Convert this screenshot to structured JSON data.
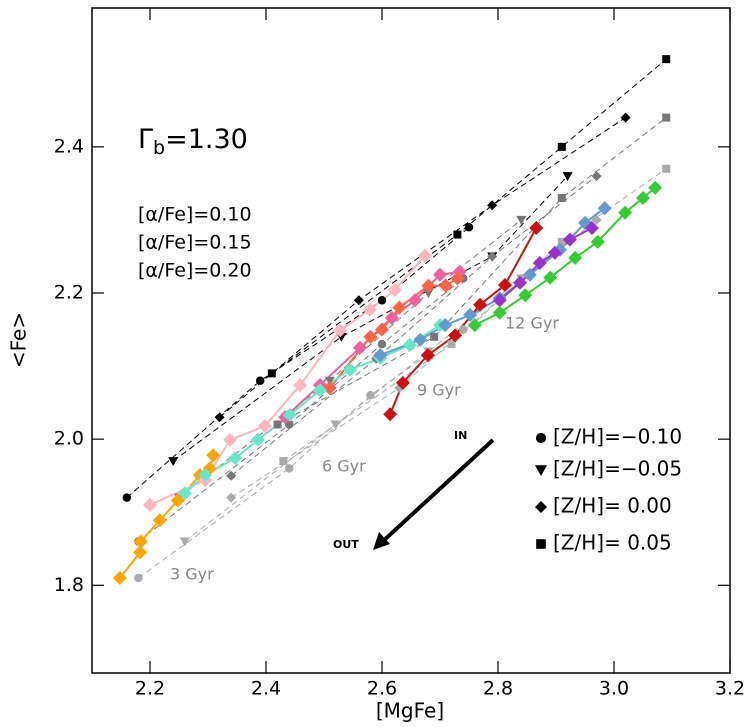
{
  "chart_data": {
    "type": "line",
    "x_label": "[MgFe]",
    "y_label": "<Fe>",
    "xlim": [
      2.1,
      3.2
    ],
    "ylim": [
      1.68,
      2.59
    ],
    "xticks": [
      2.2,
      2.4,
      2.6,
      2.8,
      {
        "value": 3,
        "label": "3.0"
      },
      3.2
    ],
    "yticks": [
      1.8,
      {
        "value": 2,
        "label": "2.0"
      },
      2.2,
      2.4
    ],
    "gamma_label": {
      "symbol": "Γ",
      "subscript": "b",
      "text": "=1.30"
    },
    "alpha_labels": [
      {
        "text": "[α/Fe]=0.10",
        "color": "#000000"
      },
      {
        "text": "[α/Fe]=0.15",
        "color": "#777777"
      },
      {
        "text": "[α/Fe]=0.20",
        "color": "#aaaaaa"
      }
    ],
    "age_labels": [
      "3 Gyr",
      "6 Gyr",
      "9 Gyr",
      "12 Gyr"
    ],
    "arrow_labels": [
      "IN",
      "OUT"
    ],
    "legend": [
      {
        "label": "[Z/H]=−0.10",
        "marker": "circle"
      },
      {
        "label": "[Z/H]=−0.05",
        "marker": "triangle"
      },
      {
        "label": "[Z/H]= 0.00",
        "marker": "diamond"
      },
      {
        "label": "[Z/H]= 0.05",
        "marker": "square"
      }
    ],
    "series": [
      {
        "color": "#000000",
        "marker": "circle",
        "style": "dashed",
        "x": [
          2.16,
          2.39,
          2.6,
          2.75
        ],
        "values": [
          1.92,
          2.08,
          2.19,
          2.29
        ]
      },
      {
        "color": "#000000",
        "marker": "triangle",
        "style": "dashed",
        "x": [
          2.24,
          2.53,
          2.79,
          2.92
        ],
        "values": [
          1.97,
          2.14,
          2.25,
          2.36
        ]
      },
      {
        "color": "#000000",
        "marker": "diamond",
        "style": "dashed",
        "x": [
          2.32,
          2.56,
          2.79,
          3.02
        ],
        "values": [
          2.03,
          2.19,
          2.32,
          2.44
        ]
      },
      {
        "color": "#000000",
        "marker": "square",
        "style": "dashed",
        "x": [
          2.41,
          2.73,
          2.91,
          3.09
        ],
        "values": [
          2.09,
          2.28,
          2.4,
          2.52
        ]
      },
      {
        "color": "#777777",
        "marker": "circle",
        "style": "dashed",
        "x": [
          2.18,
          2.44,
          2.6,
          2.74
        ],
        "values": [
          1.86,
          2.02,
          2.13,
          2.22
        ]
      },
      {
        "color": "#777777",
        "marker": "triangle",
        "style": "dashed",
        "x": [
          2.25,
          2.51,
          2.68,
          2.84
        ],
        "values": [
          1.92,
          2.08,
          2.2,
          2.3
        ]
      },
      {
        "color": "#777777",
        "marker": "diamond",
        "style": "dashed",
        "x": [
          2.34,
          2.59,
          2.79,
          2.97
        ],
        "values": [
          1.95,
          2.11,
          2.25,
          2.36
        ]
      },
      {
        "color": "#777777",
        "marker": "square",
        "style": "dashed",
        "x": [
          2.42,
          2.69,
          2.91,
          3.09
        ],
        "values": [
          2.02,
          2.14,
          2.33,
          2.44
        ]
      },
      {
        "color": "#aaaaaa",
        "marker": "circle",
        "style": "dashed",
        "x": [
          2.18,
          2.44,
          2.58,
          2.74
        ],
        "values": [
          1.81,
          1.96,
          2.06,
          2.15
        ]
      },
      {
        "color": "#aaaaaa",
        "marker": "triangle",
        "style": "dashed",
        "x": [
          2.26,
          2.52,
          2.68,
          2.84
        ],
        "values": [
          1.86,
          2.02,
          2.12,
          2.22
        ]
      },
      {
        "color": "#aaaaaa",
        "marker": "diamond",
        "style": "dashed",
        "x": [
          2.34,
          2.63,
          2.8,
          2.97
        ],
        "values": [
          1.92,
          2.07,
          2.19,
          2.3
        ]
      },
      {
        "color": "#aaaaaa",
        "marker": "square",
        "style": "dashed",
        "x": [
          2.43,
          2.72,
          2.91,
          3.09
        ],
        "values": [
          1.97,
          2.13,
          2.27,
          2.37
        ]
      },
      {
        "color": "#ffa500",
        "marker": "diamond",
        "style": "solid",
        "x": [
          2.148,
          2.183,
          2.184,
          2.217,
          2.248,
          2.286,
          2.303,
          2.309
        ],
        "values": [
          1.81,
          1.845,
          1.86,
          1.889,
          1.916,
          1.951,
          1.96,
          1.978
        ]
      },
      {
        "color": "#ffb6c1",
        "marker": "diamond",
        "style": "solid",
        "x": [
          2.2,
          2.295,
          2.338,
          2.398,
          2.459,
          2.528,
          2.579,
          2.622,
          2.674
        ],
        "values": [
          1.91,
          1.944,
          1.999,
          2.018,
          2.074,
          2.149,
          2.177,
          2.204,
          2.251
        ]
      },
      {
        "color": "#f0609e",
        "marker": "diamond",
        "style": "solid",
        "x": [
          2.433,
          2.493,
          2.562,
          2.617,
          2.657,
          2.7,
          2.734
        ],
        "values": [
          2.03,
          2.074,
          2.125,
          2.166,
          2.19,
          2.225,
          2.229
        ]
      },
      {
        "color": "#ff6347",
        "marker": "diamond",
        "style": "solid",
        "x": [
          2.51,
          2.58,
          2.6,
          2.63,
          2.68,
          2.71,
          2.73
        ],
        "values": [
          2.07,
          2.14,
          2.15,
          2.18,
          2.21,
          2.21,
          2.22
        ]
      },
      {
        "color": "#66e8c8",
        "marker": "diamond",
        "style": "solid",
        "x": [
          2.26,
          2.295,
          2.347,
          2.386,
          2.441,
          2.493,
          2.545,
          2.597,
          2.648,
          2.7
        ],
        "values": [
          1.926,
          1.951,
          1.974,
          1.999,
          2.033,
          2.067,
          2.095,
          2.111,
          2.129,
          2.156
        ]
      },
      {
        "color": "#6699cc",
        "marker": "diamond",
        "style": "solid",
        "x": [
          2.597,
          2.666,
          2.709,
          2.752,
          2.803,
          2.855,
          2.907,
          2.95,
          2.984
        ],
        "values": [
          2.115,
          2.136,
          2.156,
          2.17,
          2.193,
          2.225,
          2.259,
          2.296,
          2.316
        ]
      },
      {
        "color": "#cc1111",
        "marker": "diamond",
        "style": "solid",
        "x": [
          2.614,
          2.636,
          2.679,
          2.726,
          2.769,
          2.812,
          2.866
        ],
        "values": [
          2.034,
          2.077,
          2.115,
          2.142,
          2.184,
          2.211,
          2.289
        ]
      },
      {
        "color": "#9933cc",
        "marker": "diamond",
        "style": "solid",
        "x": [
          2.803,
          2.838,
          2.872,
          2.898,
          2.924,
          2.962
        ],
        "values": [
          2.19,
          2.214,
          2.241,
          2.255,
          2.273,
          2.289
        ]
      },
      {
        "color": "#33cc33",
        "marker": "diamond",
        "style": "solid",
        "x": [
          2.76,
          2.803,
          2.847,
          2.89,
          2.933,
          2.972,
          3.019,
          3.05,
          3.071
        ],
        "values": [
          2.156,
          2.173,
          2.197,
          2.221,
          2.248,
          2.27,
          2.31,
          2.33,
          2.344
        ]
      }
    ]
  }
}
